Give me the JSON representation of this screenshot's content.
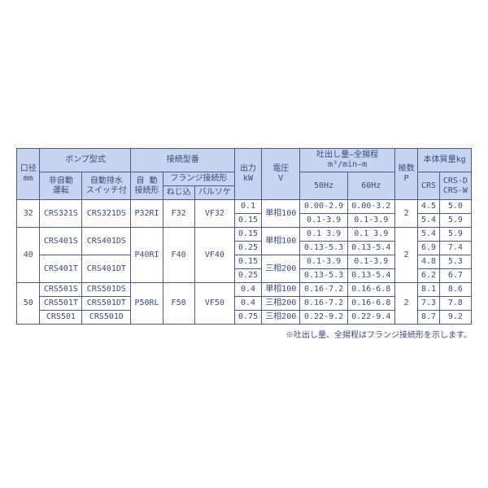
{
  "headers": {
    "bore": "口径",
    "bore_unit": "mm",
    "pump_model": "ポンプ型式",
    "non_auto": "非自動",
    "non_auto2": "運転",
    "auto_drain": "自動排水",
    "auto_drain2": "スイッチ付",
    "conn_model": "接続型番",
    "auto": "自 動",
    "auto2": "接続形",
    "flange": "フランジ接続形",
    "screw": "ねじ込",
    "valve": "バルソケ",
    "output": "出力",
    "output_unit": "kW",
    "voltage": "電圧",
    "voltage_unit": "V",
    "discharge": "吐出し量―全揚程",
    "discharge_unit": "m³/min―m",
    "hz50": "50Hz",
    "hz60": "60Hz",
    "poles": "極数",
    "poles_unit": "P",
    "mass": "本体質量kg",
    "crs": "CRS",
    "crsd": "CRS-D",
    "crsw": "CRS-W"
  },
  "rows": [
    {
      "bore": "32",
      "na": "CRS321S",
      "ad": "CRS321DS",
      "ac": "P32RI",
      "sc": "F32",
      "vl": "VF32",
      "kw": "0.1",
      "v": "単相100",
      "d50": "0.00-2.9",
      "d60": "0.00-3.2",
      "p": "2",
      "m1": "4.5",
      "m2": "5.0"
    },
    {
      "kw": "0.15",
      "d50": "0.1-3.9",
      "d60": "0.1-3.9",
      "m1": "5.4",
      "m2": "5.9"
    },
    {
      "bore": "40",
      "na": "CRS401S",
      "ad": "CRS401DS",
      "ac": "P40RI",
      "sc": "F40",
      "vl": "VF40",
      "kw": "0.15",
      "v": "単相100",
      "d50": "0.1 3.9",
      "d60": "0.1 3.9",
      "p": "2",
      "m1": "5.4",
      "m2": "5.9"
    },
    {
      "kw": "0.25",
      "d50": "0.13-5.3",
      "d60": "0.13-5.4",
      "m1": "6.9",
      "m2": "7.4"
    },
    {
      "na": "CRS401T",
      "ad": "CRS401DT",
      "kw": "0.15",
      "v": "三相200",
      "d50": "0.1-3.9",
      "d60": "0.1-3.9",
      "m1": "4.8",
      "m2": "5.3"
    },
    {
      "kw": "0.25",
      "d50": "0.13-5.3",
      "d60": "0.13-5.4",
      "m1": "6.2",
      "m2": "6.7"
    },
    {
      "bore": "50",
      "na": "CRS501S",
      "ad": "CRS501DS",
      "ac": "P50RL",
      "sc": "F50",
      "vl": "VF50",
      "kw": "0.4",
      "v": "単相100",
      "d50": "0.16-7.2",
      "d60": "0.16-6.8",
      "p": "2",
      "m1": "8.1",
      "m2": "8.6"
    },
    {
      "na": "CRS501T",
      "ad": "CRS501DT",
      "kw": "0.4",
      "v": "三相200",
      "d50": "0.16-7.2",
      "d60": "0.16-6.8",
      "m1": "7.3",
      "m2": "7.8"
    },
    {
      "na": "CRS501",
      "ad": "CRS501D",
      "kw": "0.75",
      "v": "三相200",
      "d50": "0.22-9.2",
      "d60": "0.22-9.4",
      "m1": "8.7",
      "m2": "9.2"
    }
  ],
  "note": "※吐出し量、全揚程はフランジ接続形を示します。"
}
